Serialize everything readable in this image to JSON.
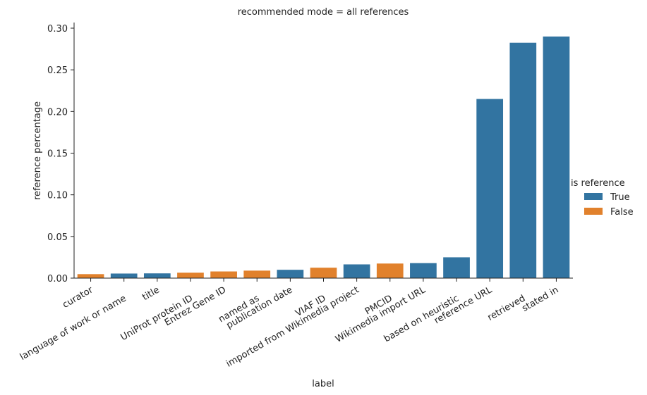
{
  "chart_data": {
    "type": "bar",
    "title": "recommended mode = all references",
    "xlabel": "label",
    "ylabel": "reference percentage",
    "ylim": [
      0,
      0.3
    ],
    "yticks": [
      "0.00",
      "0.05",
      "0.10",
      "0.15",
      "0.20",
      "0.25",
      "0.30"
    ],
    "grid": false,
    "legend": {
      "title": "is reference",
      "placement": "right",
      "entries": [
        {
          "label": "True",
          "color": "#3274a1"
        },
        {
          "label": "False",
          "color": "#e1812c"
        }
      ]
    },
    "categories": [
      "curator",
      "language of work or name",
      "title",
      "UniProt protein ID",
      "Entrez Gene ID",
      "named as",
      "publication date",
      "VIAF ID",
      "imported from Wikimedia project",
      "PMCID",
      "Wikimedia import URL",
      "based on heuristic",
      "reference URL",
      "retrieved",
      "stated in"
    ],
    "values": [
      0.0048,
      0.0055,
      0.0057,
      0.0065,
      0.008,
      0.009,
      0.01,
      0.0125,
      0.0165,
      0.0175,
      0.018,
      0.025,
      0.215,
      0.2825,
      0.29
    ],
    "is_reference": [
      "False",
      "True",
      "True",
      "False",
      "False",
      "False",
      "True",
      "False",
      "True",
      "False",
      "True",
      "True",
      "True",
      "True",
      "True"
    ]
  }
}
